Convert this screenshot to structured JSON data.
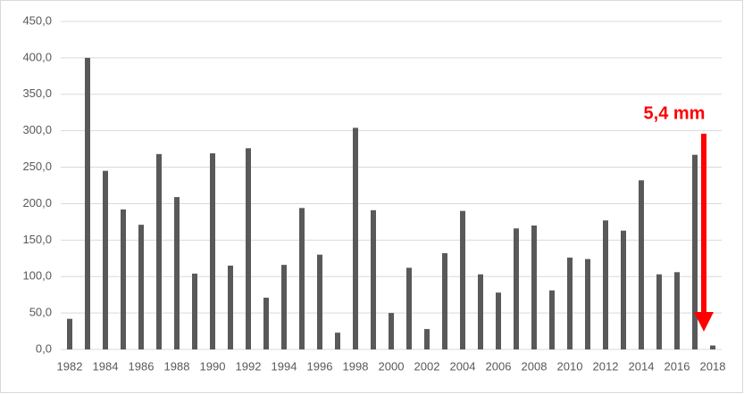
{
  "chart_data": {
    "type": "bar",
    "annotation": "5,4 mm",
    "categories": [
      "1982",
      null,
      "1984",
      null,
      "1986",
      null,
      "1988",
      null,
      "1990",
      null,
      "1992",
      null,
      "1994",
      null,
      "1996",
      null,
      "1998",
      null,
      "2000",
      null,
      "2002",
      null,
      "2004",
      null,
      "2006",
      null,
      "2008",
      null,
      "2010",
      null,
      "2012",
      null,
      "2014",
      null,
      "2016",
      null,
      "2018"
    ],
    "values": [
      42,
      400,
      245,
      192,
      171,
      268,
      209,
      104,
      269,
      115,
      276,
      71,
      116,
      194,
      130,
      23,
      304,
      191,
      50,
      112,
      28,
      132,
      190,
      103,
      78,
      166,
      170,
      81,
      126,
      124,
      177,
      163,
      232,
      103,
      106,
      267,
      5.4
    ],
    "color": "#595959",
    "annotation_color": "#ff0000",
    "ylim": [
      0,
      450
    ],
    "yticks": [
      {
        "value": 0,
        "label": "0,0"
      },
      {
        "value": 50,
        "label": "50,0"
      },
      {
        "value": 100,
        "label": "100,0"
      },
      {
        "value": 150,
        "label": "150,0"
      },
      {
        "value": 200,
        "label": "200,0"
      },
      {
        "value": 250,
        "label": "250,0"
      },
      {
        "value": 300,
        "label": "300,0"
      },
      {
        "value": 350,
        "label": "350,0"
      },
      {
        "value": 400,
        "label": "400,0"
      },
      {
        "value": 450,
        "label": "450,0"
      }
    ],
    "grid": true
  }
}
